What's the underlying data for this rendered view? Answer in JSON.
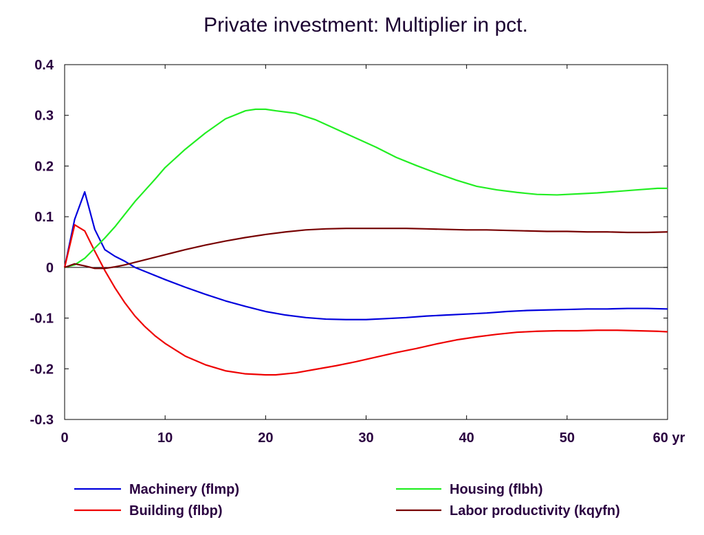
{
  "chart_data": {
    "type": "line",
    "title": "Private investment: Multiplier in pct.",
    "xlabel": "",
    "ylabel": "",
    "xlim": [
      0,
      60
    ],
    "ylim": [
      -0.3,
      0.4
    ],
    "x_ticks": [
      {
        "value": 0,
        "label": "0"
      },
      {
        "value": 10,
        "label": "10"
      },
      {
        "value": 20,
        "label": "20"
      },
      {
        "value": 30,
        "label": "30"
      },
      {
        "value": 40,
        "label": "40"
      },
      {
        "value": 50,
        "label": "50"
      },
      {
        "value": 60,
        "label": "60 yr"
      }
    ],
    "y_ticks": [
      {
        "value": 0.4,
        "label": "0.4"
      },
      {
        "value": 0.3,
        "label": "0.3"
      },
      {
        "value": 0.2,
        "label": "0.2"
      },
      {
        "value": 0.1,
        "label": "0.1"
      },
      {
        "value": 0,
        "label": "0"
      },
      {
        "value": -0.1,
        "label": "-0.1"
      },
      {
        "value": -0.2,
        "label": "-0.2"
      },
      {
        "value": -0.3,
        "label": "-0.3"
      }
    ],
    "zero_line": true,
    "grid": false,
    "legend_position": "bottom",
    "series": [
      {
        "name": "Machinery (flmp)",
        "color": "#0000dd",
        "x": [
          0,
          1,
          2,
          3,
          4,
          5,
          6,
          7,
          8,
          10,
          12,
          14,
          16,
          18,
          20,
          22,
          24,
          26,
          28,
          30,
          32,
          34,
          36,
          38,
          40,
          42,
          44,
          46,
          48,
          50,
          52,
          54,
          56,
          58,
          60
        ],
        "y": [
          0,
          0.095,
          0.149,
          0.075,
          0.035,
          0.022,
          0.012,
          0.0,
          -0.008,
          -0.024,
          -0.039,
          -0.053,
          -0.066,
          -0.077,
          -0.087,
          -0.094,
          -0.099,
          -0.102,
          -0.103,
          -0.103,
          -0.101,
          -0.099,
          -0.096,
          -0.094,
          -0.092,
          -0.09,
          -0.087,
          -0.085,
          -0.084,
          -0.083,
          -0.082,
          -0.082,
          -0.081,
          -0.081,
          -0.082
        ]
      },
      {
        "name": "Building (flbp)",
        "color": "#ee0000",
        "x": [
          0,
          1,
          2,
          3,
          4,
          5,
          6,
          7,
          8,
          9,
          10,
          12,
          14,
          16,
          18,
          20,
          21,
          23,
          25,
          27,
          29,
          31,
          33,
          35,
          37,
          39,
          41,
          43,
          45,
          47,
          49,
          51,
          53,
          55,
          57,
          59,
          60
        ],
        "y": [
          0,
          0.084,
          0.072,
          0.032,
          -0.006,
          -0.04,
          -0.07,
          -0.096,
          -0.117,
          -0.135,
          -0.15,
          -0.175,
          -0.192,
          -0.204,
          -0.21,
          -0.212,
          -0.212,
          -0.208,
          -0.201,
          -0.194,
          -0.186,
          -0.177,
          -0.168,
          -0.16,
          -0.151,
          -0.143,
          -0.137,
          -0.132,
          -0.128,
          -0.126,
          -0.125,
          -0.125,
          -0.124,
          -0.124,
          -0.125,
          -0.126,
          -0.127
        ]
      },
      {
        "name": "Housing (flbh)",
        "color": "#22ee22",
        "x": [
          0,
          1,
          2,
          3,
          4,
          5,
          6,
          7,
          8,
          9,
          10,
          12,
          14,
          16,
          18,
          19,
          20,
          21,
          23,
          25,
          27,
          29,
          31,
          33,
          35,
          37,
          39,
          41,
          43,
          45,
          47,
          49,
          51,
          53,
          55,
          57,
          59,
          60
        ],
        "y": [
          0,
          0.005,
          0.018,
          0.038,
          0.058,
          0.08,
          0.105,
          0.13,
          0.152,
          0.174,
          0.197,
          0.233,
          0.265,
          0.293,
          0.309,
          0.312,
          0.312,
          0.309,
          0.304,
          0.291,
          0.273,
          0.255,
          0.237,
          0.217,
          0.201,
          0.186,
          0.172,
          0.16,
          0.153,
          0.148,
          0.144,
          0.143,
          0.145,
          0.147,
          0.15,
          0.153,
          0.156,
          0.156
        ]
      },
      {
        "name": "Labor productivity (kqyfn)",
        "color": "#770000",
        "x": [
          0,
          1,
          2,
          3,
          4,
          5,
          6,
          7,
          8,
          10,
          12,
          14,
          16,
          18,
          20,
          22,
          24,
          26,
          28,
          30,
          32,
          34,
          36,
          38,
          40,
          42,
          44,
          46,
          48,
          50,
          52,
          54,
          56,
          58,
          60
        ],
        "y": [
          0,
          0.007,
          0.003,
          -0.002,
          -0.002,
          0.001,
          0.005,
          0.01,
          0.015,
          0.025,
          0.035,
          0.044,
          0.052,
          0.059,
          0.065,
          0.07,
          0.074,
          0.076,
          0.077,
          0.077,
          0.077,
          0.077,
          0.076,
          0.075,
          0.074,
          0.074,
          0.073,
          0.072,
          0.071,
          0.071,
          0.07,
          0.07,
          0.069,
          0.069,
          0.07
        ]
      }
    ]
  }
}
